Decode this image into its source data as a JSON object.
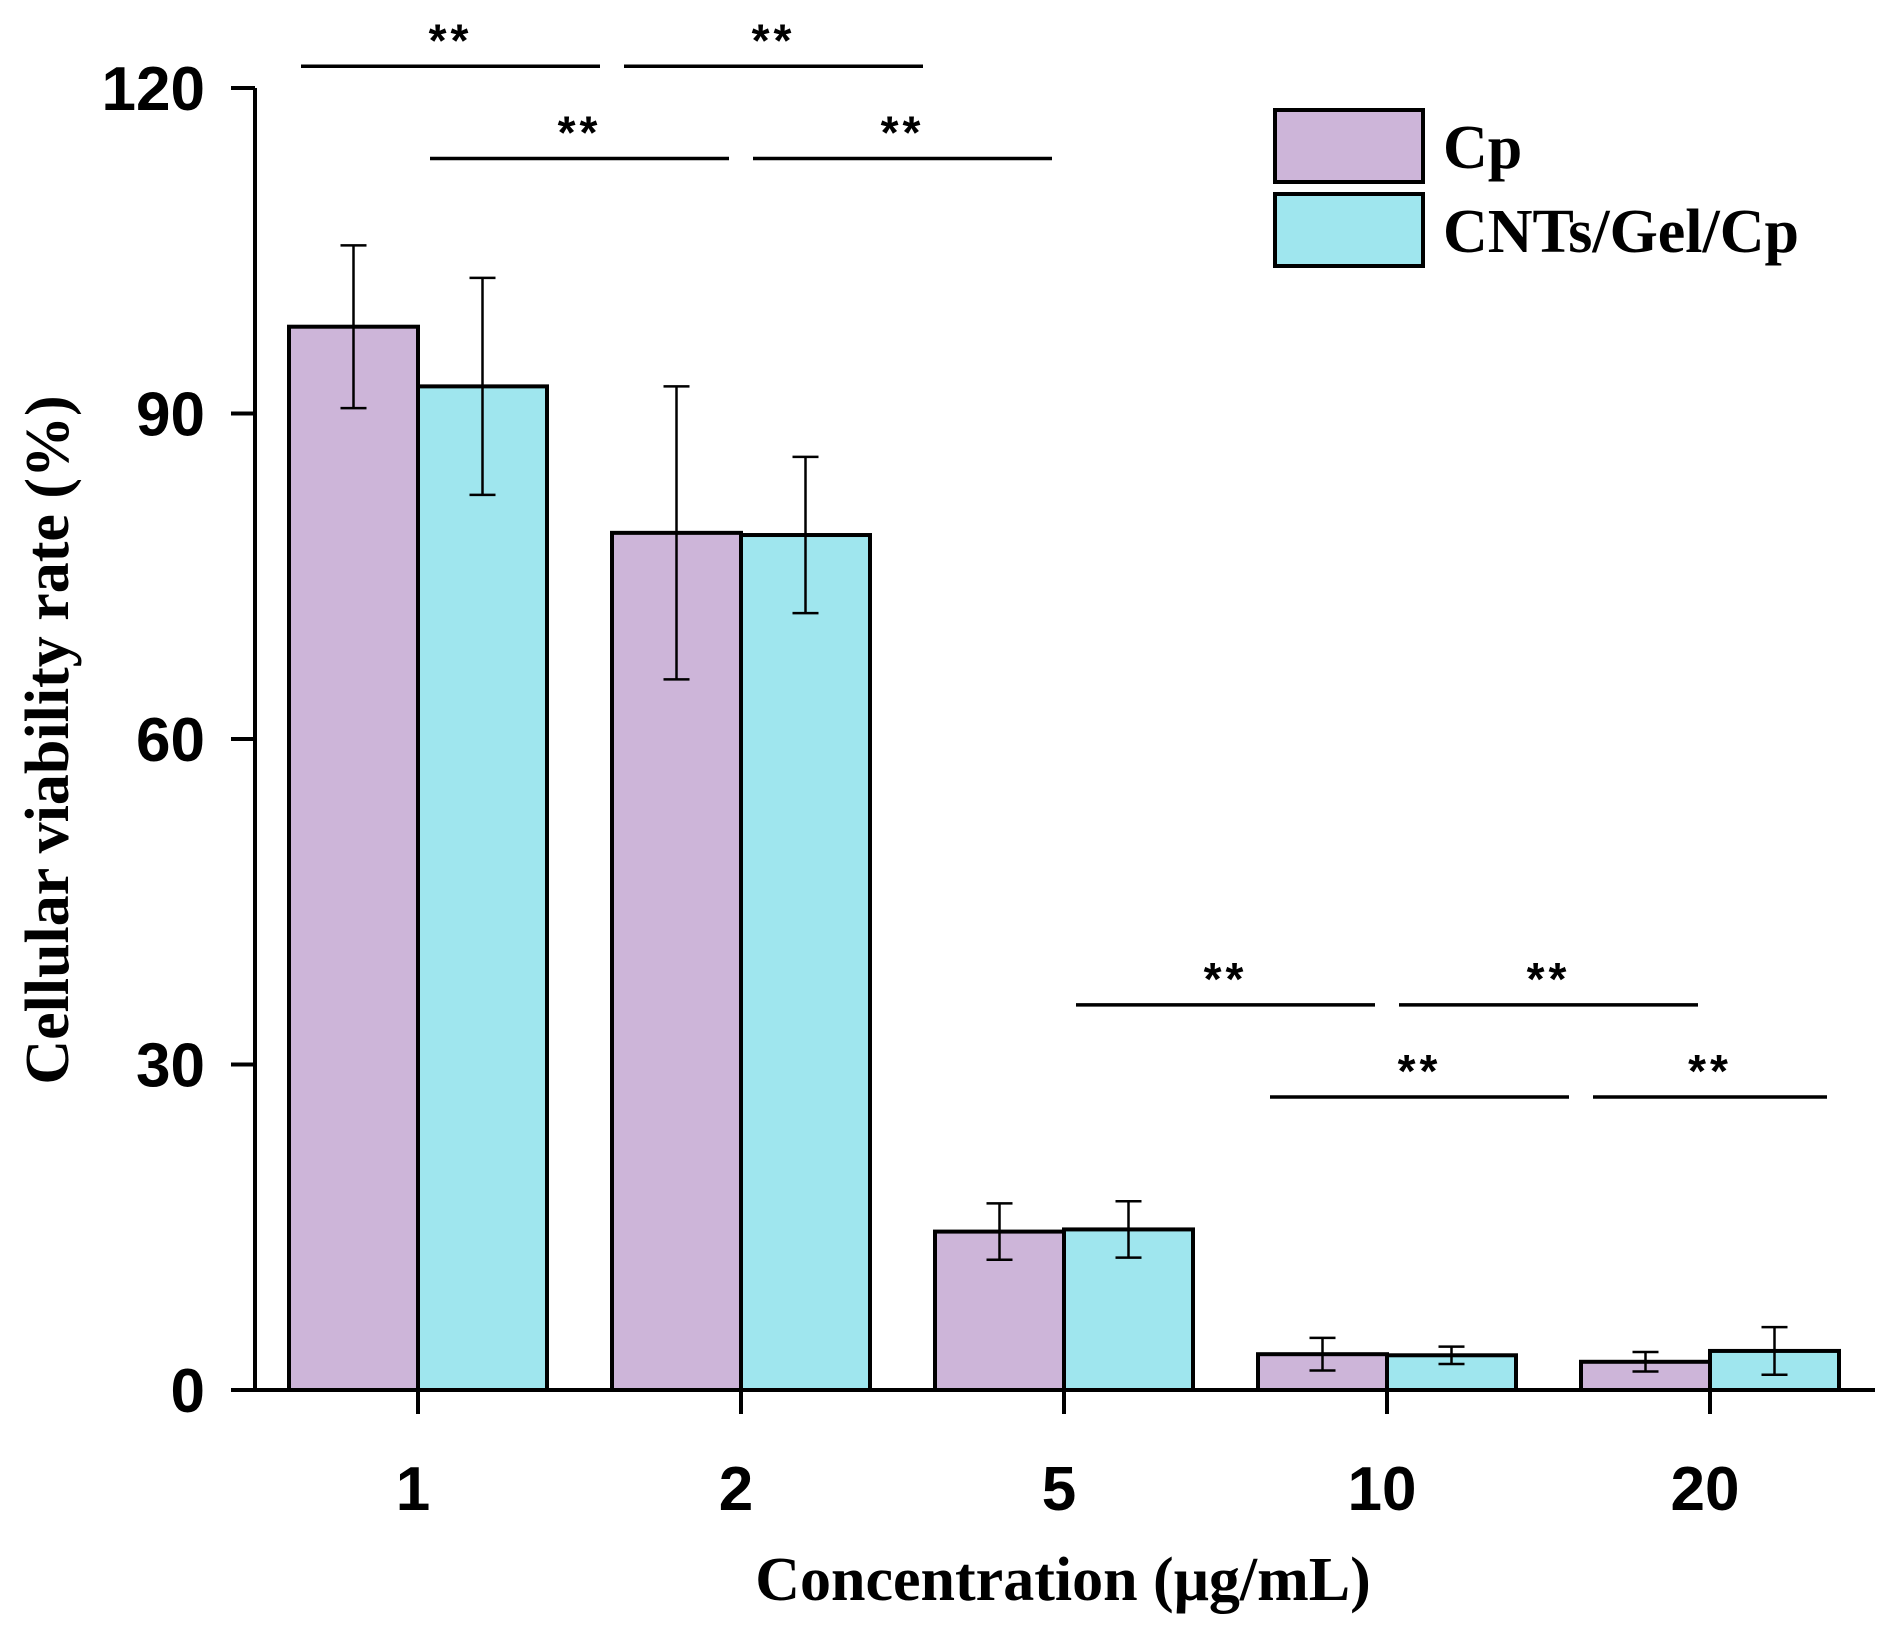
{
  "chart_data": {
    "type": "bar",
    "xlabel": "Concentration (μg/mL)",
    "ylabel": "Cellular viability rate (%)",
    "ylim": [
      0,
      120
    ],
    "yticks": [
      0,
      30,
      60,
      90,
      120
    ],
    "categories": [
      "1",
      "2",
      "5",
      "10",
      "20"
    ],
    "series": [
      {
        "name": "Cp",
        "color": "#cdb5d9",
        "values": [
          98.0,
          79.0,
          14.6,
          3.3,
          2.6
        ],
        "errors": [
          7.5,
          13.5,
          2.6,
          1.5,
          0.9
        ]
      },
      {
        "name": "CNTs/Gel/Cp",
        "color": "#9fe6ee",
        "values": [
          92.5,
          78.8,
          14.8,
          3.2,
          3.6
        ],
        "errors": [
          10.0,
          7.2,
          2.6,
          0.8,
          2.2
        ]
      }
    ],
    "legend_position": "top-right",
    "significance": [
      {
        "from": 0,
        "to": 2,
        "level": 122,
        "label": "**"
      },
      {
        "from": 2,
        "to": 4,
        "level": 122,
        "label": "**"
      },
      {
        "from": 1,
        "to": 3,
        "level": 113.5,
        "label": "**"
      },
      {
        "from": 3,
        "to": 5,
        "level": 113.5,
        "label": "**"
      },
      {
        "from": 5,
        "to": 7,
        "level": 35.5,
        "label": "**"
      },
      {
        "from": 7,
        "to": 9,
        "level": 35.5,
        "label": "**"
      },
      {
        "from": 6,
        "to": 8,
        "level": 27,
        "label": "**"
      },
      {
        "from": 8,
        "to": 10,
        "level": 27,
        "label": "**"
      }
    ]
  }
}
